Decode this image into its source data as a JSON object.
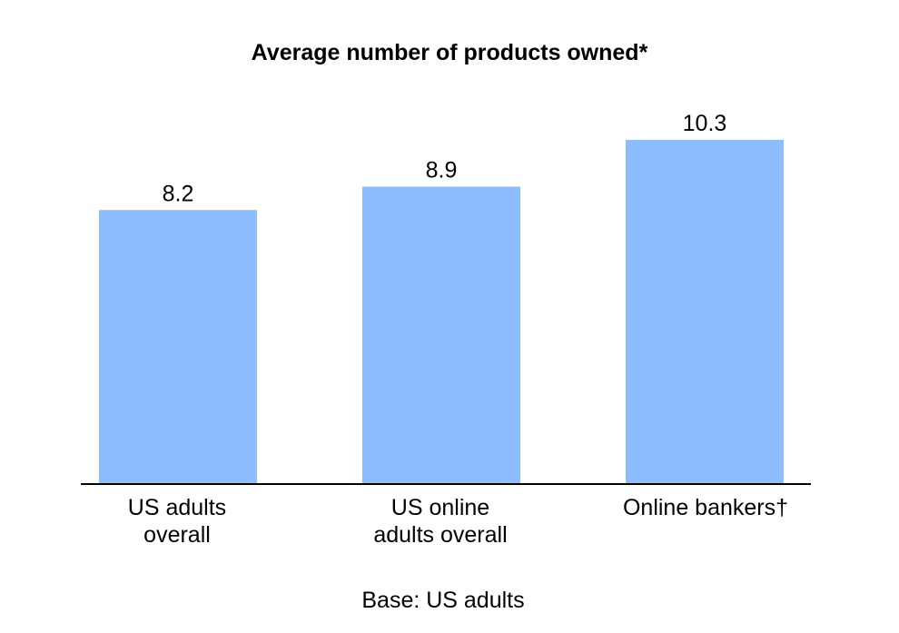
{
  "chart_data": {
    "type": "bar",
    "title": "Average number of products owned*",
    "categories": [
      "US adults overall",
      "US online adults overall",
      "Online bankers†"
    ],
    "category_lines": [
      [
        "US adults",
        "overall"
      ],
      [
        "US online",
        "adults overall"
      ],
      [
        "Online bankers†"
      ]
    ],
    "values": [
      8.2,
      8.9,
      10.3
    ],
    "value_labels": [
      "8.2",
      "8.9",
      "10.3"
    ],
    "ylim": [
      0,
      10.3
    ],
    "grid": false,
    "legend": "none",
    "bar_color": "#8dbdfc",
    "axis_color": "#000000"
  },
  "footnote": "Base: US adults"
}
